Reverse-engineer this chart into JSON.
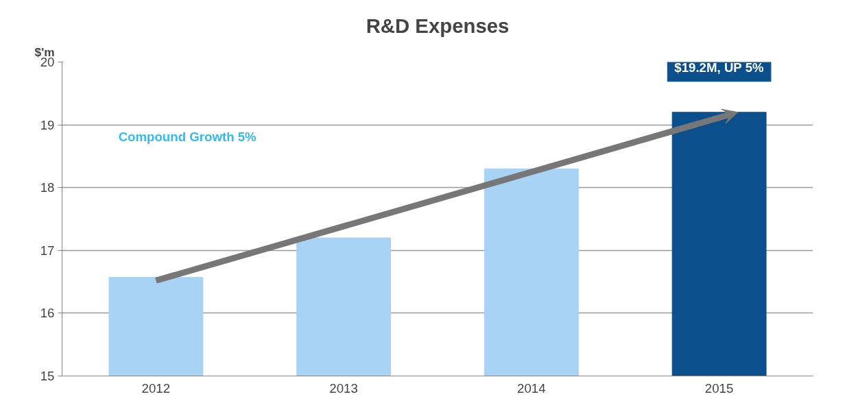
{
  "chart_data": {
    "type": "bar",
    "title": "R&D Expenses",
    "ylabel": "$'m",
    "categories": [
      "2012",
      "2013",
      "2014",
      "2015"
    ],
    "values": [
      16.57,
      17.2,
      18.3,
      19.2
    ],
    "colors": [
      "#a8d3f5",
      "#a8d3f5",
      "#a8d3f5",
      "#0b4f8c"
    ],
    "ylim": [
      15,
      20
    ],
    "yticks": [
      15,
      16,
      17,
      18,
      19,
      20
    ],
    "grid": "y",
    "annotations": [
      "Compound Growth 5%",
      {
        "text": "$19.2M, UP 5%",
        "x": "2015",
        "y": 19.2
      }
    ]
  }
}
